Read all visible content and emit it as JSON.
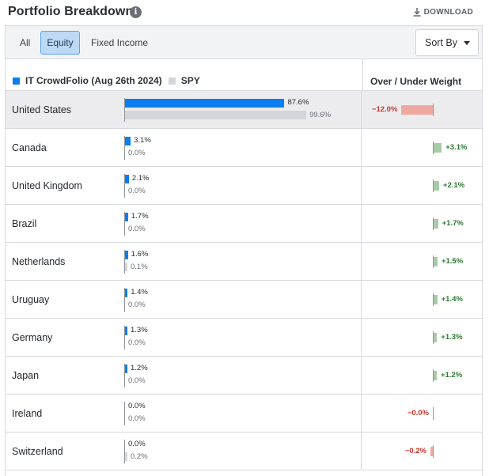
{
  "header": {
    "title": "Portfolio Breakdown",
    "info_icon": "i",
    "download_label": "DOWNLOAD"
  },
  "filters": {
    "tabs": [
      "All",
      "Equity",
      "Fixed Income"
    ],
    "active": "Equity",
    "sort_label": "Sort By"
  },
  "columns": {
    "portfolio": "IT CrowdFolio (Aug 26th 2024)",
    "benchmark": "SPY",
    "overweight": "Over / Under Weight"
  },
  "colors": {
    "portfolio": "#0a7ef0",
    "benchmark": "#d3d5d8",
    "over": "#a7cba6",
    "under": "#f0a9a1"
  },
  "rows": [
    {
      "country": "United States",
      "portfolio": "87.6%",
      "benchmark": "99.6%",
      "p": 87.6,
      "b": 99.6,
      "diff": "−12.0%",
      "d": -12.0
    },
    {
      "country": "Canada",
      "portfolio": "3.1%",
      "benchmark": "0.0%",
      "p": 3.1,
      "b": 0.0,
      "diff": "+3.1%",
      "d": 3.1
    },
    {
      "country": "United Kingdom",
      "portfolio": "2.1%",
      "benchmark": "0.0%",
      "p": 2.1,
      "b": 0.0,
      "diff": "+2.1%",
      "d": 2.1
    },
    {
      "country": "Brazil",
      "portfolio": "1.7%",
      "benchmark": "0.0%",
      "p": 1.7,
      "b": 0.0,
      "diff": "+1.7%",
      "d": 1.7
    },
    {
      "country": "Netherlands",
      "portfolio": "1.6%",
      "benchmark": "0.1%",
      "p": 1.6,
      "b": 0.1,
      "diff": "+1.5%",
      "d": 1.5
    },
    {
      "country": "Uruguay",
      "portfolio": "1.4%",
      "benchmark": "0.0%",
      "p": 1.4,
      "b": 0.0,
      "diff": "+1.4%",
      "d": 1.4
    },
    {
      "country": "Germany",
      "portfolio": "1.3%",
      "benchmark": "0.0%",
      "p": 1.3,
      "b": 0.0,
      "diff": "+1.3%",
      "d": 1.3
    },
    {
      "country": "Japan",
      "portfolio": "1.2%",
      "benchmark": "0.0%",
      "p": 1.2,
      "b": 0.0,
      "diff": "+1.2%",
      "d": 1.2
    },
    {
      "country": "Ireland",
      "portfolio": "0.0%",
      "benchmark": "0.0%",
      "p": 0.0,
      "b": 0.0,
      "diff": "−0.0%",
      "d": -0.0
    },
    {
      "country": "Switzerland",
      "portfolio": "0.0%",
      "benchmark": "0.2%",
      "p": 0.0,
      "b": 0.2,
      "diff": "−0.2%",
      "d": -0.2
    }
  ]
}
